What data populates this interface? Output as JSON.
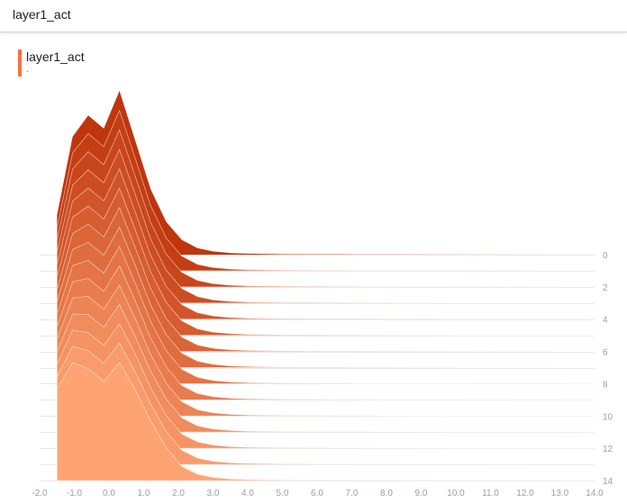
{
  "header": {
    "title": "layer1_act"
  },
  "legend": {
    "label": "layer1_act",
    "sub": "."
  },
  "colors": {
    "start": "#bf360c",
    "end": "#ffa372",
    "baseline": "#e8e8e8",
    "tick": "#9e9e9e",
    "accent": "#ff7043"
  },
  "chart_data": {
    "type": "area",
    "title": "layer1_act",
    "x_ticks": [
      "-2.0",
      "-1.0",
      "0.0",
      "1.0",
      "2.0",
      "3.0",
      "4.0",
      "5.0",
      "6.0",
      "7.0",
      "8.0",
      "9.0",
      "10.0",
      "11.0",
      "12.0",
      "13.0",
      "14.0"
    ],
    "xlim": [
      -2.0,
      14.0
    ],
    "step_ticks": [
      "0",
      "2",
      "4",
      "6",
      "8",
      "10",
      "12",
      "14"
    ],
    "steps": [
      0,
      14
    ],
    "x": [
      -1.5,
      -1.05,
      -0.6,
      -0.15,
      0.3,
      0.75,
      1.2,
      1.65,
      2.1,
      2.55,
      3.0,
      3.5,
      4.0,
      5.0,
      6.0,
      7.0,
      8.0,
      10.0,
      14.0
    ],
    "series_first": [
      0.24,
      0.72,
      0.85,
      0.77,
      1.0,
      0.7,
      0.4,
      0.2,
      0.09,
      0.04,
      0.02,
      0.01,
      0.006,
      0.003,
      0.002,
      0.0015,
      0.001,
      0.0005,
      0
    ],
    "series_last": [
      0.58,
      0.75,
      0.71,
      0.63,
      0.75,
      0.58,
      0.38,
      0.21,
      0.09,
      0.04,
      0.02,
      0.01,
      0.006,
      0.003,
      0.002,
      0.0015,
      0.001,
      0.0005,
      0
    ]
  }
}
